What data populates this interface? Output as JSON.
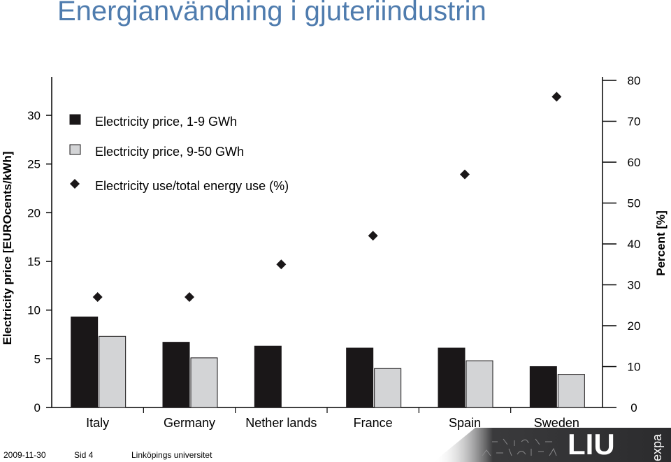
{
  "slide": {
    "title": "Energianvändning i gjuteriindustrin",
    "footer_date": "2009-11-30",
    "footer_page": "Sid 4",
    "footer_org": "Linköpings universitet",
    "logo_text": "LIU",
    "logo_side_text": "expa"
  },
  "chart_data": {
    "type": "bar",
    "categories": [
      "Italy",
      "Germany",
      "Nether lands",
      "France",
      "Spain",
      "Sweden"
    ],
    "series": [
      {
        "name": "Electricity price, 1-9 GWh",
        "kind": "bar",
        "axis": "left",
        "color": "#1a1718",
        "values": [
          9.3,
          6.7,
          6.3,
          6.1,
          6.1,
          4.2
        ]
      },
      {
        "name": "Electricity price, 9-50 GWh",
        "kind": "bar",
        "axis": "left",
        "color": "#d3d4d6",
        "values": [
          7.3,
          5.1,
          null,
          4.0,
          4.8,
          3.4
        ]
      },
      {
        "name": "Electricity use/total energy use (%)",
        "kind": "scatter",
        "axis": "right",
        "color": "#1a1718",
        "values": [
          27,
          27,
          35,
          42,
          57,
          76
        ]
      }
    ],
    "ylabel": "Electricity price [EUROcents/kWh]",
    "y2label": "Percent [%]",
    "ylim": [
      0,
      30
    ],
    "yticks": [
      0,
      5,
      10,
      15,
      20,
      25,
      30
    ],
    "y2lim": [
      0,
      80
    ],
    "y2ticks": [
      0,
      10,
      20,
      30,
      40,
      50,
      60,
      70,
      80
    ],
    "grid": false,
    "legend": "top-left"
  }
}
